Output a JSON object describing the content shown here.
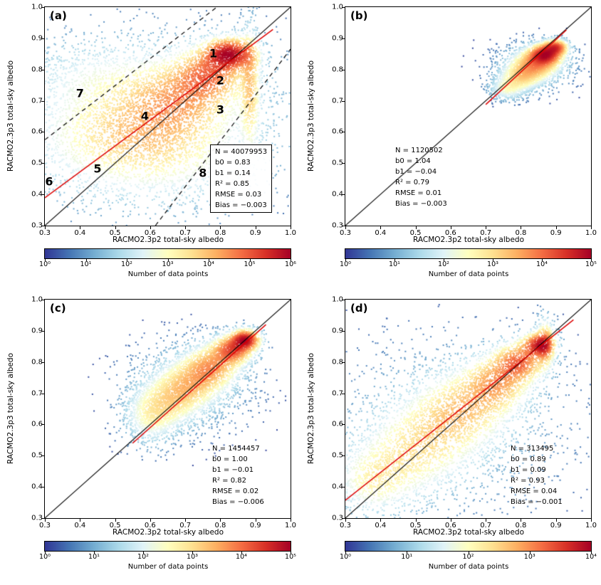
{
  "figure": {
    "background": "#ffffff"
  },
  "colormap": {
    "stops": [
      "#313695",
      "#4575b4",
      "#74add1",
      "#abd9e9",
      "#e0f3f8",
      "#ffffbf",
      "#fee090",
      "#fdae61",
      "#f46d43",
      "#d73027",
      "#a50026"
    ]
  },
  "chart_data": [
    {
      "type": "heatmap",
      "panel_label": "(a)",
      "xlabel": "RACMO2.3p2 total-sky albedo",
      "ylabel": "RACMO2.3p3 total-sky albedo",
      "xlim": [
        0.3,
        1.0
      ],
      "ylim": [
        0.3,
        1.0
      ],
      "xticks": [
        0.3,
        0.4,
        0.5,
        0.6,
        0.7,
        0.8,
        0.9,
        1.0
      ],
      "yticks": [
        0.3,
        0.4,
        0.5,
        0.6,
        0.7,
        0.8,
        0.9,
        1.0
      ],
      "stats": {
        "N": 40079953,
        "b0": 0.83,
        "b1": 0.14,
        "R2": 0.85,
        "RMSE": 0.03,
        "Bias": -0.003
      },
      "stats_lines": [
        "N = 40079953",
        "b0 = 0.83",
        "b1 = 0.14",
        "R² = 0.85",
        "RMSE = 0.03",
        "Bias = −0.003"
      ],
      "identity_line": {
        "color": "#000000"
      },
      "regression_line": {
        "slope": 0.83,
        "intercept": 0.14,
        "x_range": [
          0.3,
          0.95
        ],
        "color": "#dd0000"
      },
      "dashed_lines": [
        {
          "x1": 0.3,
          "y1": 0.575,
          "x2": 0.79,
          "y2": 1.0
        },
        {
          "x1": 0.615,
          "y1": 0.3,
          "x2": 1.0,
          "y2": 0.865
        }
      ],
      "annotations": [
        {
          "label": "1",
          "x": 0.78,
          "y": 0.852
        },
        {
          "label": "2",
          "x": 0.8,
          "y": 0.765
        },
        {
          "label": "3",
          "x": 0.8,
          "y": 0.672
        },
        {
          "label": "4",
          "x": 0.585,
          "y": 0.652
        },
        {
          "label": "5",
          "x": 0.45,
          "y": 0.483
        },
        {
          "label": "6",
          "x": 0.312,
          "y": 0.442
        },
        {
          "label": "7",
          "x": 0.4,
          "y": 0.725
        },
        {
          "label": "8",
          "x": 0.75,
          "y": 0.468
        }
      ],
      "colorbar": {
        "label": "Number of data points",
        "tick_labels": [
          "10⁰",
          "10¹",
          "10²",
          "10³",
          "10⁴",
          "10⁵",
          "10⁶"
        ]
      },
      "render": {
        "seed": 7,
        "n_points": 9000,
        "blobs": [
          {
            "x": 0.62,
            "y": 0.665,
            "sx": 0.25,
            "sy": 0.145,
            "w": 0.15,
            "n": 0.2
          },
          {
            "x": 0.5,
            "y": 0.56,
            "sx": 0.17,
            "sy": 0.11,
            "w": 0.22,
            "n": 0.13
          },
          {
            "x": 0.57,
            "y": 0.6,
            "sx": 0.12,
            "sy": 0.08,
            "w": 0.4,
            "n": 0.1
          },
          {
            "x": 0.68,
            "y": 0.705,
            "sx": 0.09,
            "sy": 0.065,
            "w": 0.6,
            "n": 0.12
          },
          {
            "x": 0.765,
            "y": 0.785,
            "sx": 0.06,
            "sy": 0.048,
            "w": 0.9,
            "n": 0.12
          },
          {
            "x": 0.825,
            "y": 0.85,
            "sx": 0.042,
            "sy": 0.03,
            "w": 1.7,
            "n": 0.13
          },
          {
            "x": 0.885,
            "y": 0.74,
            "sx": 0.016,
            "sy": 0.11,
            "w": 0.55,
            "n": 0.07
          },
          {
            "x": 0.46,
            "y": 0.78,
            "sx": 0.14,
            "sy": 0.065,
            "w": 0.16,
            "n": 0.08
          },
          {
            "x": 0.7,
            "y": 0.5,
            "sx": 0.13,
            "sy": 0.09,
            "w": 0.12,
            "n": 0.05
          }
        ]
      }
    },
    {
      "type": "heatmap",
      "panel_label": "(b)",
      "xlabel": "RACMO2.3p2 total-sky albedo",
      "ylabel": "RACMO2.3p3 total-sky albedo",
      "xlim": [
        0.3,
        1.0
      ],
      "ylim": [
        0.3,
        1.0
      ],
      "xticks": [
        0.3,
        0.4,
        0.5,
        0.6,
        0.7,
        0.8,
        0.9,
        1.0
      ],
      "yticks": [
        0.3,
        0.4,
        0.5,
        0.6,
        0.7,
        0.8,
        0.9,
        1.0
      ],
      "stats": {
        "N": 1120502,
        "b0": 1.04,
        "b1": -0.04,
        "R2": 0.79,
        "RMSE": 0.01,
        "Bias": -0.003
      },
      "stats_lines": [
        "N = 1120502",
        "b0 = 1.04",
        "b1 = −0.04",
        "R² = 0.79",
        "RMSE = 0.01",
        "Bias = −0.003"
      ],
      "identity_line": {
        "color": "#000000"
      },
      "regression_line": {
        "slope": 1.04,
        "intercept": -0.04,
        "x_range": [
          0.7,
          0.93
        ],
        "color": "#dd0000"
      },
      "dashed_lines": [],
      "annotations": [],
      "colorbar": {
        "label": "Number of data points",
        "tick_labels": [
          "10⁰",
          "10¹",
          "10²",
          "10³",
          "10⁴",
          "10⁵"
        ]
      },
      "render": {
        "seed": 11,
        "n_points": 5000,
        "blobs": [
          {
            "x": 0.76,
            "y": 0.738,
            "sx": 0.028,
            "sy": 0.02,
            "w": 0.3,
            "n": 0.1
          },
          {
            "x": 0.8,
            "y": 0.775,
            "sx": 0.034,
            "sy": 0.024,
            "w": 0.5,
            "n": 0.17
          },
          {
            "x": 0.84,
            "y": 0.815,
            "sx": 0.038,
            "sy": 0.026,
            "w": 0.8,
            "n": 0.24
          },
          {
            "x": 0.87,
            "y": 0.848,
            "sx": 0.028,
            "sy": 0.019,
            "w": 1.5,
            "n": 0.24
          },
          {
            "x": 0.9,
            "y": 0.872,
            "sx": 0.02,
            "sy": 0.014,
            "w": 1.1,
            "n": 0.12
          },
          {
            "x": 0.845,
            "y": 0.812,
            "sx": 0.065,
            "sy": 0.042,
            "w": 0.1,
            "n": 0.13
          }
        ]
      }
    },
    {
      "type": "heatmap",
      "panel_label": "(c)",
      "xlabel": "RACMO2.3p2 total-sky albedo",
      "ylabel": "RACMO2.3p3 total-sky albedo",
      "xlim": [
        0.3,
        1.0
      ],
      "ylim": [
        0.3,
        1.0
      ],
      "xticks": [
        0.3,
        0.4,
        0.5,
        0.6,
        0.7,
        0.8,
        0.9,
        1.0
      ],
      "yticks": [
        0.3,
        0.4,
        0.5,
        0.6,
        0.7,
        0.8,
        0.9,
        1.0
      ],
      "stats": {
        "N": 1454457,
        "b0": 1.0,
        "b1": -0.01,
        "R2": 0.82,
        "RMSE": 0.02,
        "Bias": -0.006
      },
      "stats_lines": [
        "N = 1454457",
        "b0 = 1.00",
        "b1 = −0.01",
        "R² = 0.82",
        "RMSE = 0.02",
        "Bias = −0.006"
      ],
      "identity_line": {
        "color": "#000000"
      },
      "regression_line": {
        "slope": 1.0,
        "intercept": -0.01,
        "x_range": [
          0.55,
          0.93
        ],
        "color": "#dd0000"
      },
      "dashed_lines": [],
      "annotations": [],
      "colorbar": {
        "label": "Number of data points",
        "tick_labels": [
          "10⁰",
          "10¹",
          "10²",
          "10³",
          "10⁴",
          "10⁵"
        ]
      },
      "render": {
        "seed": 23,
        "n_points": 6500,
        "blobs": [
          {
            "x": 0.6,
            "y": 0.625,
            "sx": 0.042,
            "sy": 0.05,
            "w": 0.35,
            "n": 0.13
          },
          {
            "x": 0.655,
            "y": 0.675,
            "sx": 0.05,
            "sy": 0.048,
            "w": 0.45,
            "n": 0.15
          },
          {
            "x": 0.715,
            "y": 0.73,
            "sx": 0.05,
            "sy": 0.044,
            "w": 0.6,
            "n": 0.15
          },
          {
            "x": 0.775,
            "y": 0.785,
            "sx": 0.045,
            "sy": 0.038,
            "w": 0.85,
            "n": 0.15
          },
          {
            "x": 0.835,
            "y": 0.84,
            "sx": 0.034,
            "sy": 0.027,
            "w": 1.3,
            "n": 0.14
          },
          {
            "x": 0.872,
            "y": 0.872,
            "sx": 0.024,
            "sy": 0.019,
            "w": 1.7,
            "n": 0.1
          },
          {
            "x": 0.715,
            "y": 0.725,
            "sx": 0.1,
            "sy": 0.08,
            "w": 0.1,
            "n": 0.18
          }
        ]
      }
    },
    {
      "type": "heatmap",
      "panel_label": "(d)",
      "xlabel": "RACMO2.3p2 total-sky albedo",
      "ylabel": "RACMO2.3p3 total-sky albedo",
      "xlim": [
        0.3,
        1.0
      ],
      "ylim": [
        0.3,
        1.0
      ],
      "xticks": [
        0.3,
        0.4,
        0.5,
        0.6,
        0.7,
        0.8,
        0.9,
        1.0
      ],
      "yticks": [
        0.3,
        0.4,
        0.5,
        0.6,
        0.7,
        0.8,
        0.9,
        1.0
      ],
      "stats": {
        "N": 313495,
        "b0": 0.89,
        "b1": 0.09,
        "R2": 0.93,
        "RMSE": 0.04,
        "Bias": -0.001
      },
      "stats_lines": [
        "N = 313495",
        "b0 = 0.89",
        "b1 = 0.09",
        "R² = 0.93",
        "RMSE = 0.04",
        "Bias = −0.001"
      ],
      "identity_line": {
        "color": "#000000"
      },
      "regression_line": {
        "slope": 0.89,
        "intercept": 0.09,
        "x_range": [
          0.3,
          0.95
        ],
        "color": "#dd0000"
      },
      "dashed_lines": [],
      "annotations": [],
      "colorbar": {
        "label": "Number of data points",
        "tick_labels": [
          "10⁰",
          "10¹",
          "10²",
          "10³",
          "10⁴"
        ]
      },
      "render": {
        "seed": 41,
        "n_points": 7000,
        "blobs": [
          {
            "x": 0.44,
            "y": 0.465,
            "sx": 0.085,
            "sy": 0.075,
            "w": 0.35,
            "n": 0.11
          },
          {
            "x": 0.54,
            "y": 0.56,
            "sx": 0.085,
            "sy": 0.075,
            "w": 0.5,
            "n": 0.13
          },
          {
            "x": 0.64,
            "y": 0.655,
            "sx": 0.075,
            "sy": 0.065,
            "w": 0.65,
            "n": 0.13
          },
          {
            "x": 0.73,
            "y": 0.735,
            "sx": 0.055,
            "sy": 0.05,
            "w": 0.85,
            "n": 0.13
          },
          {
            "x": 0.795,
            "y": 0.8,
            "sx": 0.042,
            "sy": 0.036,
            "w": 1.2,
            "n": 0.11
          },
          {
            "x": 0.85,
            "y": 0.855,
            "sx": 0.027,
            "sy": 0.023,
            "w": 1.6,
            "n": 0.08
          },
          {
            "x": 0.6,
            "y": 0.6,
            "sx": 0.2,
            "sy": 0.16,
            "w": 0.08,
            "n": 0.2
          },
          {
            "x": 0.37,
            "y": 0.41,
            "sx": 0.06,
            "sy": 0.06,
            "w": 0.3,
            "n": 0.06
          },
          {
            "x": 0.87,
            "y": 0.86,
            "sx": 0.015,
            "sy": 0.045,
            "w": 0.8,
            "n": 0.05
          }
        ]
      }
    }
  ]
}
